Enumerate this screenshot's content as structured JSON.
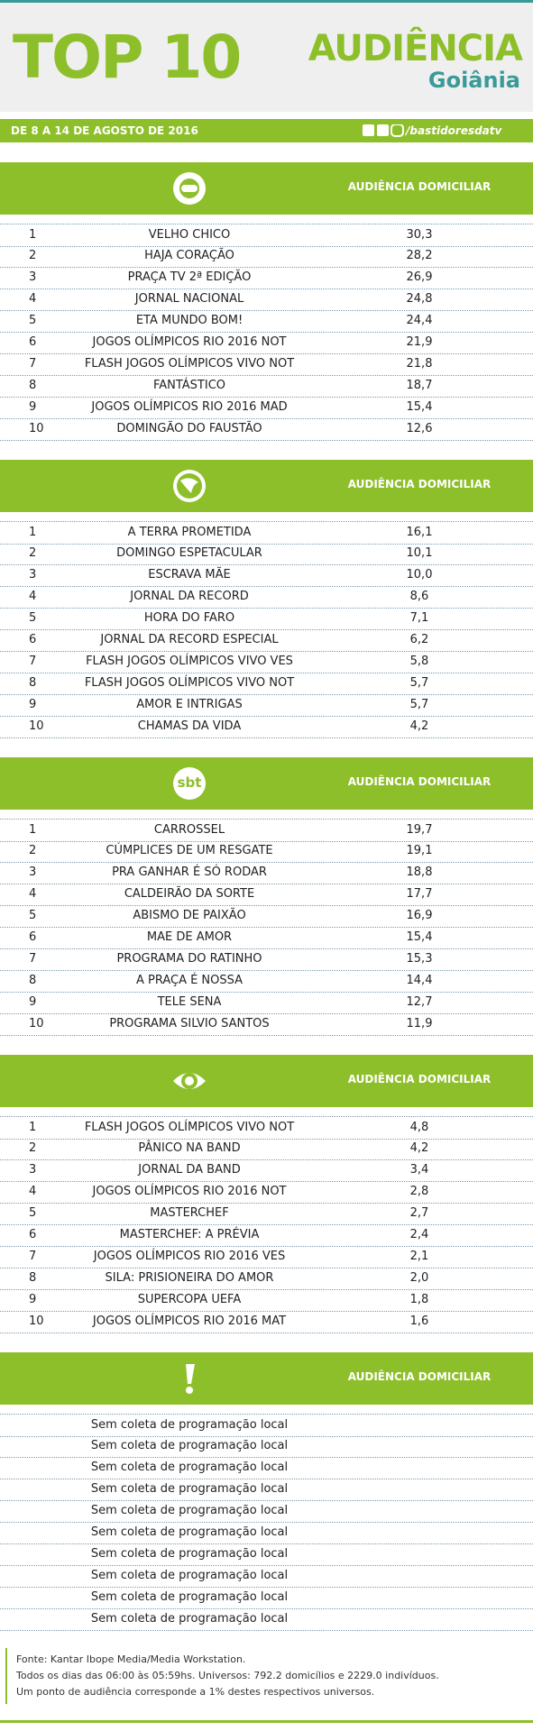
{
  "header": {
    "title": "TOP 10",
    "brand": "AUDIÊNCIA",
    "city": "Goiânia"
  },
  "date_bar": {
    "period": "DE 8 A 14 DE AGOSTO DE 2016",
    "handle": "/bastidoresdatv"
  },
  "sections": [
    {
      "heading": "AUDIÊNCIA DOMICILIAR",
      "rows": [
        [
          "1",
          "VELHO CHICO",
          "30,3"
        ],
        [
          "2",
          "HAJA CORAÇÃO",
          "28,2"
        ],
        [
          "3",
          "PRAÇA TV 2ª EDIÇÃO",
          "26,9"
        ],
        [
          "4",
          "JORNAL NACIONAL",
          "24,8"
        ],
        [
          "5",
          "ETA MUNDO BOM!",
          "24,4"
        ],
        [
          "6",
          "JOGOS OLÍMPICOS RIO 2016 NOT",
          "21,9"
        ],
        [
          "7",
          "FLASH JOGOS OLÍMPICOS VIVO NOT",
          "21,8"
        ],
        [
          "8",
          "FANTÁSTICO",
          "18,7"
        ],
        [
          "9",
          "JOGOS OLÍMPICOS RIO 2016 MAD",
          "15,4"
        ],
        [
          "10",
          "DOMINGÃO DO FAUSTÃO",
          "12,6"
        ]
      ]
    },
    {
      "heading": "AUDIÊNCIA DOMICILIAR",
      "rows": [
        [
          "1",
          "A TERRA PROMETIDA",
          "16,1"
        ],
        [
          "2",
          "DOMINGO ESPETACULAR",
          "10,1"
        ],
        [
          "3",
          "ESCRAVA MÃE",
          "10,0"
        ],
        [
          "4",
          "JORNAL DA RECORD",
          "8,6"
        ],
        [
          "5",
          "HORA DO FARO",
          "7,1"
        ],
        [
          "6",
          "JORNAL DA RECORD ESPECIAL",
          "6,2"
        ],
        [
          "7",
          "FLASH JOGOS OLÍMPICOS VIVO VES",
          "5,8"
        ],
        [
          "8",
          "FLASH JOGOS OLÍMPICOS VIVO NOT",
          "5,7"
        ],
        [
          "9",
          "AMOR E INTRIGAS",
          "5,7"
        ],
        [
          "10",
          "CHAMAS DA VIDA",
          "4,2"
        ]
      ]
    },
    {
      "logo": "sbt",
      "heading": "AUDIÊNCIA DOMICILIAR",
      "rows": [
        [
          "1",
          "CARROSSEL",
          "19,7"
        ],
        [
          "2",
          "CÚMPLICES DE UM RESGATE",
          "19,1"
        ],
        [
          "3",
          "PRA GANHAR É SÓ RODAR",
          "18,8"
        ],
        [
          "4",
          "CALDEIRÃO DA SORTE",
          "17,7"
        ],
        [
          "5",
          "ABISMO DE PAIXÃO",
          "16,9"
        ],
        [
          "6",
          "MAE DE AMOR",
          "15,4"
        ],
        [
          "7",
          "PROGRAMA DO RATINHO",
          "15,3"
        ],
        [
          "8",
          "A PRAÇA É NOSSA",
          "14,4"
        ],
        [
          "9",
          "TELE SENA",
          "12,7"
        ],
        [
          "10",
          "PROGRAMA SILVIO SANTOS",
          "11,9"
        ]
      ]
    },
    {
      "heading": "AUDIÊNCIA DOMICILIAR",
      "rows": [
        [
          "1",
          "FLASH JOGOS OLÍMPICOS VIVO NOT",
          "4,8"
        ],
        [
          "2",
          "PÂNICO NA BAND",
          "4,2"
        ],
        [
          "3",
          "JORNAL DA BAND",
          "3,4"
        ],
        [
          "4",
          "JOGOS OLÍMPICOS RIO 2016 NOT",
          "2,8"
        ],
        [
          "5",
          "MASTERCHEF",
          "2,7"
        ],
        [
          "6",
          "MASTERCHEF: A PRÉVIA",
          "2,4"
        ],
        [
          "7",
          "JOGOS OLÍMPICOS RIO 2016 VES",
          "2,1"
        ],
        [
          "8",
          "SILA: PRISIONEIRA DO AMOR",
          "2,0"
        ],
        [
          "9",
          "SUPERCOPA UEFA",
          "1,8"
        ],
        [
          "10",
          "JOGOS OLÍMPICOS RIO 2016 MAT",
          "1,6"
        ]
      ]
    },
    {
      "heading": "AUDIÊNCIA DOMICILIAR",
      "rows": [
        [
          "Sem coleta de programação local"
        ],
        [
          "Sem coleta de programação local"
        ],
        [
          "Sem coleta de programação local"
        ],
        [
          "Sem coleta de programação local"
        ],
        [
          "Sem coleta de programação local"
        ],
        [
          "Sem coleta de programação local"
        ],
        [
          "Sem coleta de programação local"
        ],
        [
          "Sem coleta de programação local"
        ],
        [
          "Sem coleta de programação local"
        ],
        [
          "Sem coleta de programação local"
        ]
      ]
    }
  ],
  "footer": [
    "Fonte: Kantar Ibope Media/Media Workstation.",
    "Todos os dias das 06:00 às 05:59hs. Universos: 792.2 domicílios e 2229.0 indivíduos.",
    "Um ponto de audiência corresponde a 1% destes respectivos universos."
  ]
}
